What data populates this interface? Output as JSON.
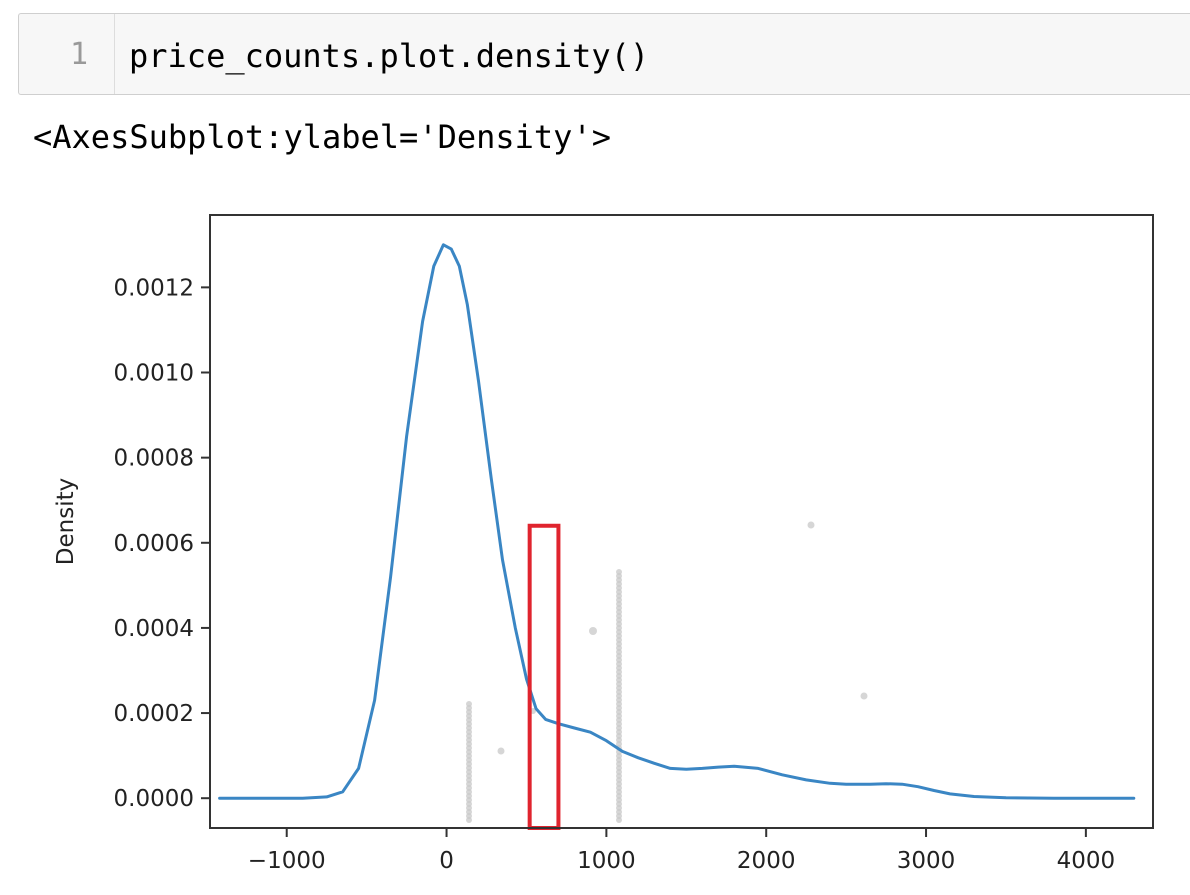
{
  "cell": {
    "line_number": "1",
    "code": "price_counts.plot.density()"
  },
  "output": {
    "repr": "<AxesSubplot:ylabel='Density'>"
  },
  "colors": {
    "line": "#3a86c4",
    "highlight": "#e0242e",
    "axes": "#333333",
    "points": "#c8c8c8"
  },
  "chart_data": {
    "type": "line",
    "title": "",
    "xlabel": "",
    "ylabel": "Density",
    "xlim": [
      -1480,
      4420
    ],
    "ylim": [
      -7e-05,
      0.00137
    ],
    "grid": false,
    "legend": "none",
    "xticks": [
      -1000,
      0,
      1000,
      2000,
      3000,
      4000
    ],
    "xtick_labels": [
      "−1000",
      "0",
      "1000",
      "2000",
      "3000",
      "4000"
    ],
    "yticks": [
      0.0,
      0.0002,
      0.0004,
      0.0006,
      0.0008,
      0.001,
      0.0012
    ],
    "ytick_labels": [
      "0.0000",
      "0.0002",
      "0.0004",
      "0.0006",
      "0.0008",
      "0.0010",
      "0.0012"
    ],
    "series": [
      {
        "x": [
          -1420,
          -1100,
          -900,
          -750,
          -650,
          -550,
          -450,
          -350,
          -250,
          -150,
          -80,
          -20,
          30,
          80,
          130,
          200,
          280,
          350,
          430,
          500,
          560,
          620,
          700,
          800,
          900,
          1000,
          1100,
          1200,
          1300,
          1400,
          1500,
          1600,
          1700,
          1800,
          1950,
          2100,
          2250,
          2400,
          2500,
          2650,
          2750,
          2850,
          2950,
          3050,
          3150,
          3300,
          3500,
          3800,
          4150,
          4300
        ],
        "y": [
          0.0,
          0.0,
          0.0,
          3e-06,
          1.5e-05,
          7e-05,
          0.00023,
          0.00052,
          0.00085,
          0.00112,
          0.00125,
          0.0013,
          0.00129,
          0.00125,
          0.00116,
          0.00098,
          0.00075,
          0.00056,
          0.0004,
          0.00028,
          0.00021,
          0.000185,
          0.000175,
          0.000165,
          0.000155,
          0.000135,
          0.00011,
          9.5e-05,
          8.2e-05,
          7e-05,
          6.8e-05,
          7e-05,
          7.3e-05,
          7.5e-05,
          7e-05,
          5.5e-05,
          4.3e-05,
          3.5e-05,
          3.3e-05,
          3.3e-05,
          3.4e-05,
          3.3e-05,
          2.7e-05,
          1.8e-05,
          1e-05,
          4e-06,
          1e-06,
          0.0,
          0.0,
          0.0
        ]
      }
    ],
    "highlight_box": {
      "x": [
        520,
        700
      ],
      "y": [
        -7e-05,
        0.00064
      ]
    }
  }
}
